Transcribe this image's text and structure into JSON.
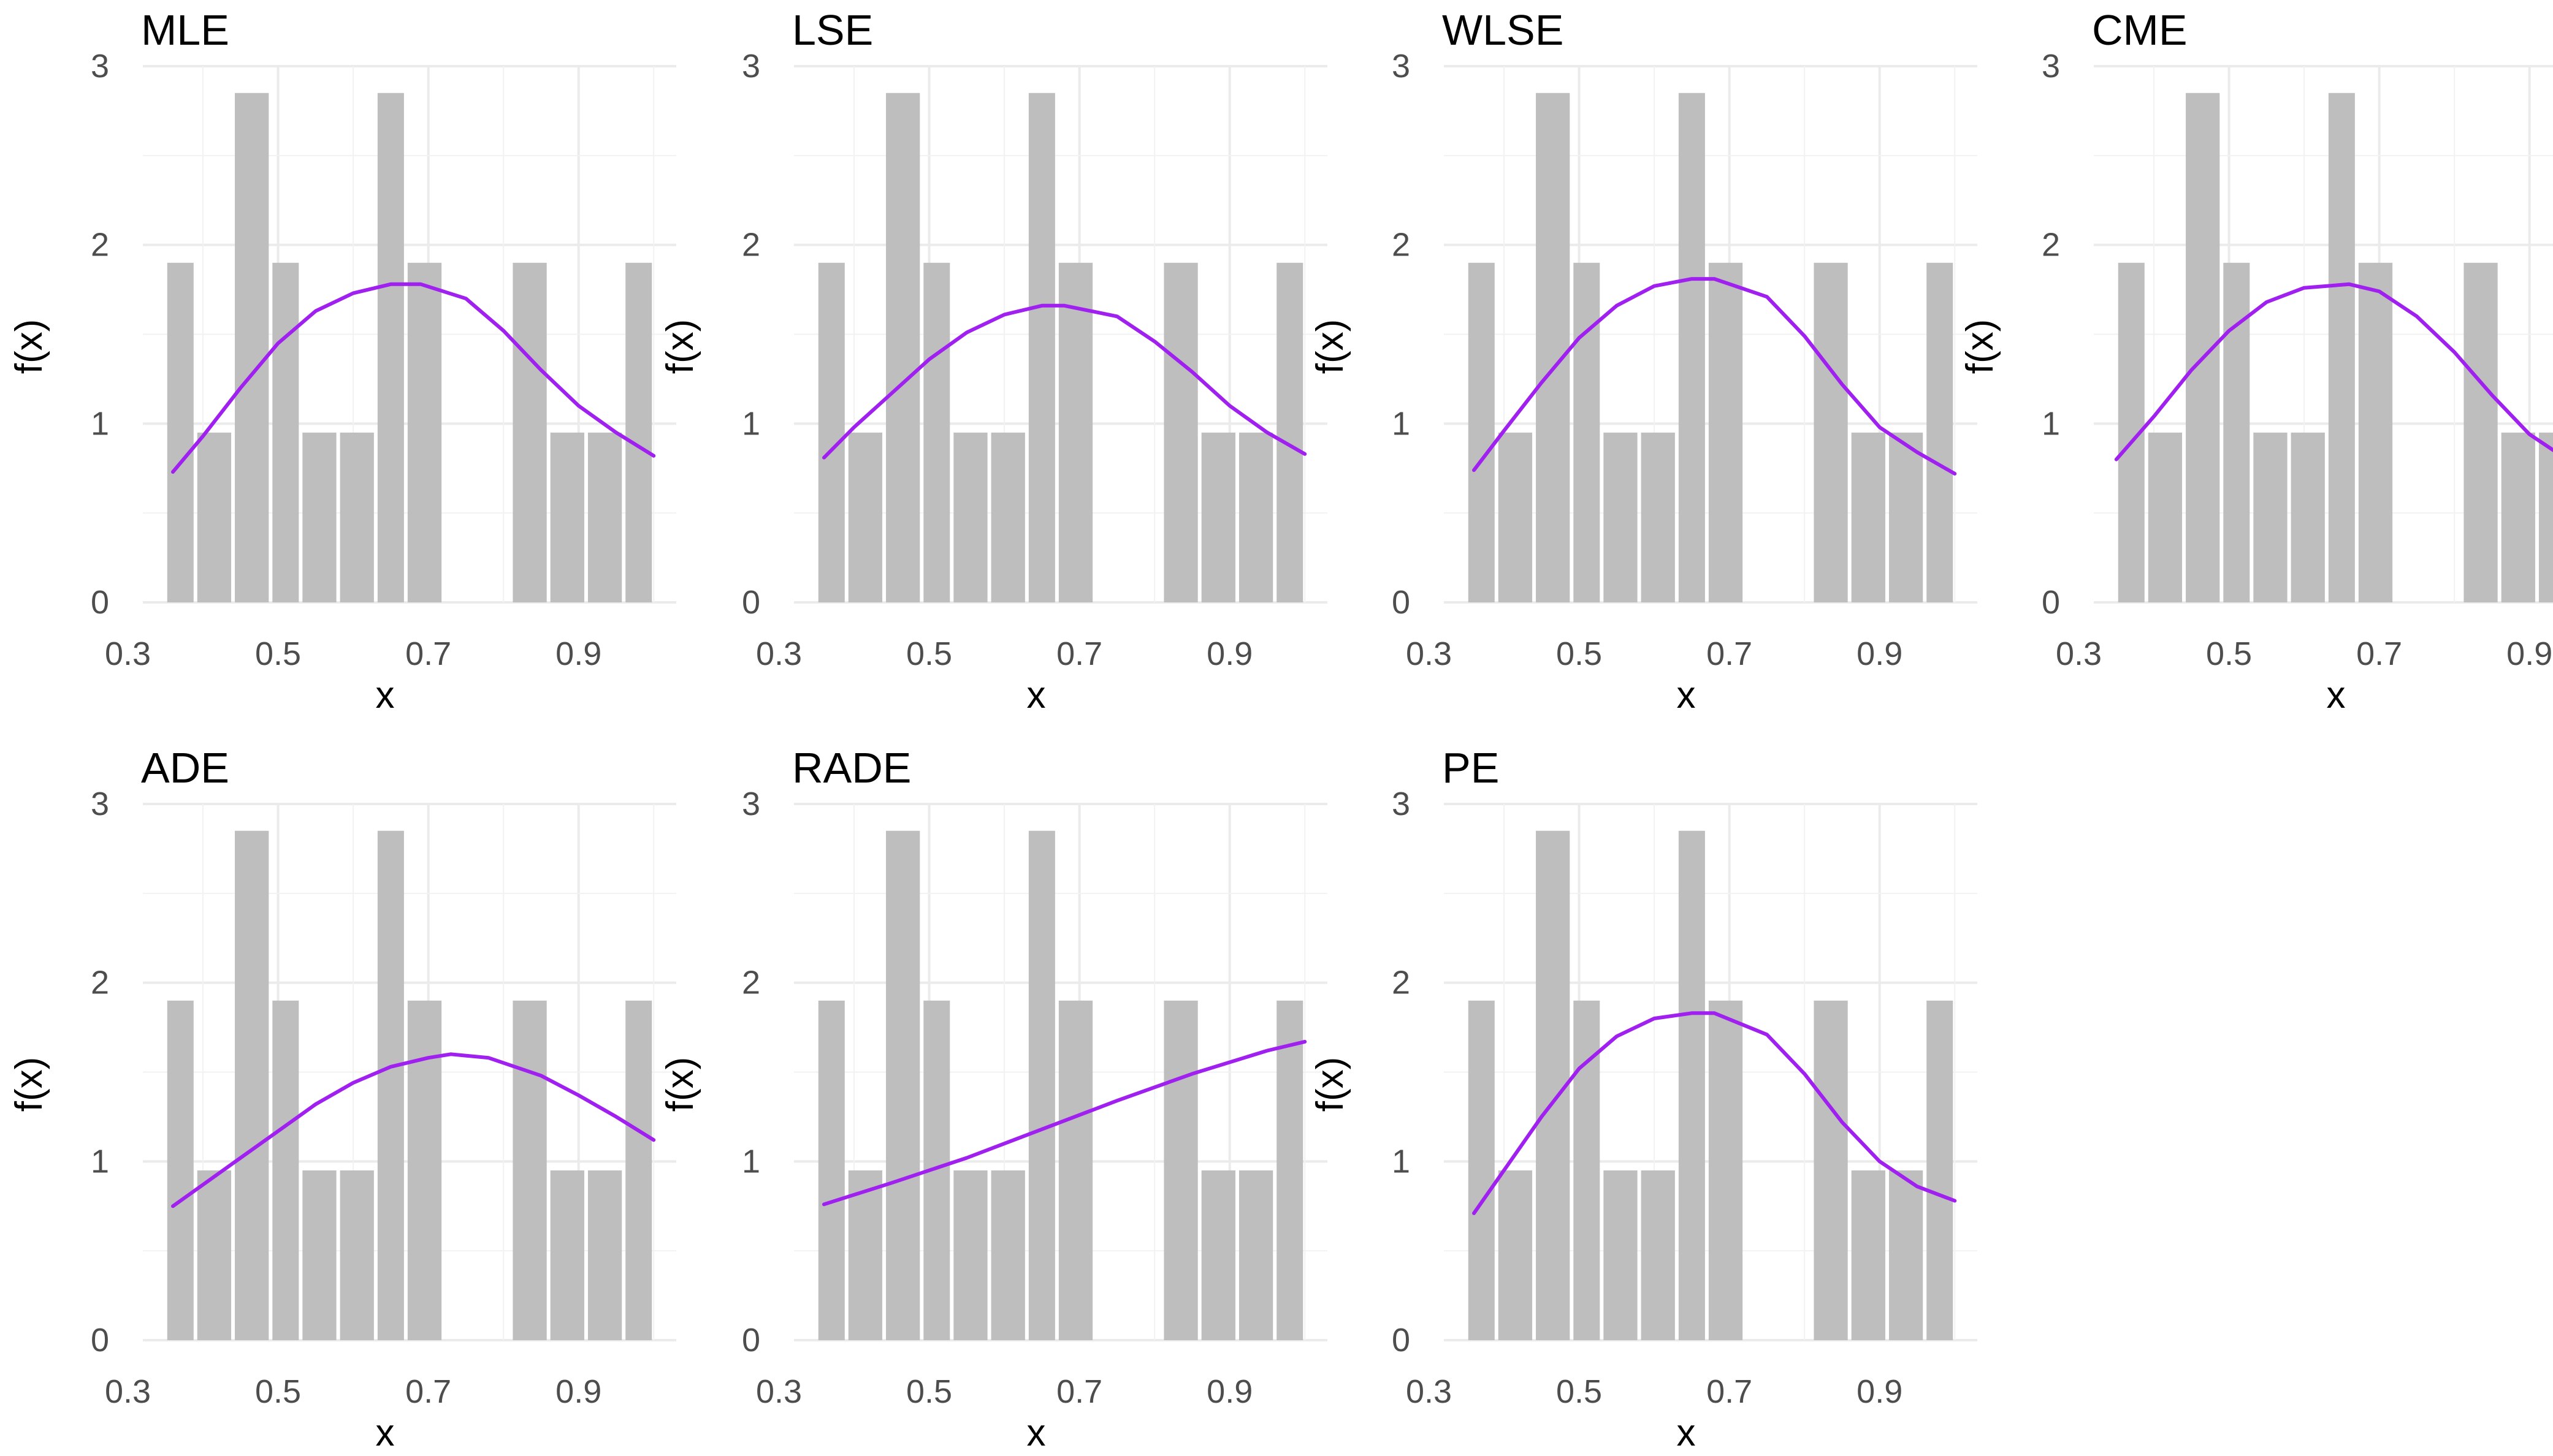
{
  "chart_data": [
    {
      "type": "bar",
      "title": "MLE",
      "xlabel": "x",
      "ylabel": "f(x)",
      "xlim": [
        0.32,
        1.03
      ],
      "ylim": [
        0,
        3
      ],
      "xticks": [
        0.3,
        0.5,
        0.7,
        0.9
      ],
      "xtick_labels": [
        "0.3",
        "0.5",
        "0.7",
        "0.9"
      ],
      "yticks": [
        0,
        1,
        2,
        3
      ],
      "ytick_labels": [
        "0",
        "1",
        "2",
        "3"
      ],
      "bins": [
        [
          0.35,
          0.39
        ],
        [
          0.39,
          0.44
        ],
        [
          0.44,
          0.49
        ],
        [
          0.49,
          0.53
        ],
        [
          0.53,
          0.58
        ],
        [
          0.58,
          0.63
        ],
        [
          0.63,
          0.67
        ],
        [
          0.67,
          0.72
        ],
        [
          0.72,
          0.77
        ],
        [
          0.77,
          0.81
        ],
        [
          0.81,
          0.86
        ],
        [
          0.86,
          0.91
        ],
        [
          0.91,
          0.96
        ],
        [
          0.96,
          1.0
        ]
      ],
      "density": [
        1.9,
        0.95,
        2.85,
        1.9,
        0.95,
        0.95,
        2.85,
        1.9,
        0,
        0,
        1.9,
        0.95,
        0.95,
        1.9
      ],
      "fit_curve": {
        "name": "fitted density",
        "color": "#a020f0",
        "x": [
          0.36,
          0.4,
          0.45,
          0.5,
          0.55,
          0.6,
          0.65,
          0.69,
          0.75,
          0.8,
          0.85,
          0.9,
          0.95,
          1.0
        ],
        "y": [
          0.73,
          0.93,
          1.2,
          1.45,
          1.63,
          1.73,
          1.78,
          1.78,
          1.7,
          1.52,
          1.3,
          1.1,
          0.95,
          0.82
        ]
      }
    },
    {
      "type": "bar",
      "title": "LSE",
      "xlabel": "x",
      "ylabel": "f(x)",
      "xlim": [
        0.32,
        1.03
      ],
      "ylim": [
        0,
        3
      ],
      "xticks": [
        0.3,
        0.5,
        0.7,
        0.9
      ],
      "xtick_labels": [
        "0.3",
        "0.5",
        "0.7",
        "0.9"
      ],
      "yticks": [
        0,
        1,
        2,
        3
      ],
      "ytick_labels": [
        "0",
        "1",
        "2",
        "3"
      ],
      "bins": [
        [
          0.35,
          0.39
        ],
        [
          0.39,
          0.44
        ],
        [
          0.44,
          0.49
        ],
        [
          0.49,
          0.53
        ],
        [
          0.53,
          0.58
        ],
        [
          0.58,
          0.63
        ],
        [
          0.63,
          0.67
        ],
        [
          0.67,
          0.72
        ],
        [
          0.72,
          0.77
        ],
        [
          0.77,
          0.81
        ],
        [
          0.81,
          0.86
        ],
        [
          0.86,
          0.91
        ],
        [
          0.91,
          0.96
        ],
        [
          0.96,
          1.0
        ]
      ],
      "density": [
        1.9,
        0.95,
        2.85,
        1.9,
        0.95,
        0.95,
        2.85,
        1.9,
        0,
        0,
        1.9,
        0.95,
        0.95,
        1.9
      ],
      "fit_curve": {
        "name": "fitted density",
        "color": "#a020f0",
        "x": [
          0.36,
          0.4,
          0.45,
          0.5,
          0.55,
          0.6,
          0.65,
          0.68,
          0.75,
          0.8,
          0.85,
          0.9,
          0.95,
          1.0
        ],
        "y": [
          0.81,
          0.98,
          1.17,
          1.36,
          1.51,
          1.61,
          1.66,
          1.66,
          1.6,
          1.46,
          1.29,
          1.1,
          0.95,
          0.83
        ]
      }
    },
    {
      "type": "bar",
      "title": "WLSE",
      "xlabel": "x",
      "ylabel": "f(x)",
      "xlim": [
        0.32,
        1.03
      ],
      "ylim": [
        0,
        3
      ],
      "xticks": [
        0.3,
        0.5,
        0.7,
        0.9
      ],
      "xtick_labels": [
        "0.3",
        "0.5",
        "0.7",
        "0.9"
      ],
      "yticks": [
        0,
        1,
        2,
        3
      ],
      "ytick_labels": [
        "0",
        "1",
        "2",
        "3"
      ],
      "bins": [
        [
          0.35,
          0.39
        ],
        [
          0.39,
          0.44
        ],
        [
          0.44,
          0.49
        ],
        [
          0.49,
          0.53
        ],
        [
          0.53,
          0.58
        ],
        [
          0.58,
          0.63
        ],
        [
          0.63,
          0.67
        ],
        [
          0.67,
          0.72
        ],
        [
          0.72,
          0.77
        ],
        [
          0.77,
          0.81
        ],
        [
          0.81,
          0.86
        ],
        [
          0.86,
          0.91
        ],
        [
          0.91,
          0.96
        ],
        [
          0.96,
          1.0
        ]
      ],
      "density": [
        1.9,
        0.95,
        2.85,
        1.9,
        0.95,
        0.95,
        2.85,
        1.9,
        0,
        0,
        1.9,
        0.95,
        0.95,
        1.9
      ],
      "fit_curve": {
        "name": "fitted density",
        "color": "#a020f0",
        "x": [
          0.36,
          0.4,
          0.45,
          0.5,
          0.55,
          0.6,
          0.65,
          0.68,
          0.75,
          0.8,
          0.85,
          0.9,
          0.95,
          1.0
        ],
        "y": [
          0.74,
          0.96,
          1.23,
          1.48,
          1.66,
          1.77,
          1.81,
          1.81,
          1.71,
          1.49,
          1.22,
          0.98,
          0.84,
          0.72
        ]
      }
    },
    {
      "type": "bar",
      "title": "CME",
      "xlabel": "x",
      "ylabel": "f(x)",
      "xlim": [
        0.32,
        1.03
      ],
      "ylim": [
        0,
        3
      ],
      "xticks": [
        0.3,
        0.5,
        0.7,
        0.9
      ],
      "xtick_labels": [
        "0.3",
        "0.5",
        "0.7",
        "0.9"
      ],
      "yticks": [
        0,
        1,
        2,
        3
      ],
      "ytick_labels": [
        "0",
        "1",
        "2",
        "3"
      ],
      "bins": [
        [
          0.35,
          0.39
        ],
        [
          0.39,
          0.44
        ],
        [
          0.44,
          0.49
        ],
        [
          0.49,
          0.53
        ],
        [
          0.53,
          0.58
        ],
        [
          0.58,
          0.63
        ],
        [
          0.63,
          0.67
        ],
        [
          0.67,
          0.72
        ],
        [
          0.72,
          0.77
        ],
        [
          0.77,
          0.81
        ],
        [
          0.81,
          0.86
        ],
        [
          0.86,
          0.91
        ],
        [
          0.91,
          0.96
        ],
        [
          0.96,
          1.0
        ]
      ],
      "density": [
        1.9,
        0.95,
        2.85,
        1.9,
        0.95,
        0.95,
        2.85,
        1.9,
        0,
        0,
        1.9,
        0.95,
        0.95,
        1.9
      ],
      "fit_curve": {
        "name": "fitted density",
        "color": "#a020f0",
        "x": [
          0.35,
          0.4,
          0.45,
          0.5,
          0.55,
          0.6,
          0.66,
          0.7,
          0.75,
          0.8,
          0.85,
          0.9,
          0.95,
          1.0
        ],
        "y": [
          0.8,
          1.04,
          1.3,
          1.52,
          1.68,
          1.76,
          1.78,
          1.74,
          1.6,
          1.4,
          1.16,
          0.94,
          0.8,
          0.69
        ]
      }
    },
    {
      "type": "bar",
      "title": "ADE",
      "xlabel": "x",
      "ylabel": "f(x)",
      "xlim": [
        0.32,
        1.03
      ],
      "ylim": [
        0,
        3
      ],
      "xticks": [
        0.3,
        0.5,
        0.7,
        0.9
      ],
      "xtick_labels": [
        "0.3",
        "0.5",
        "0.7",
        "0.9"
      ],
      "yticks": [
        0,
        1,
        2,
        3
      ],
      "ytick_labels": [
        "0",
        "1",
        "2",
        "3"
      ],
      "bins": [
        [
          0.35,
          0.39
        ],
        [
          0.39,
          0.44
        ],
        [
          0.44,
          0.49
        ],
        [
          0.49,
          0.53
        ],
        [
          0.53,
          0.58
        ],
        [
          0.58,
          0.63
        ],
        [
          0.63,
          0.67
        ],
        [
          0.67,
          0.72
        ],
        [
          0.72,
          0.77
        ],
        [
          0.77,
          0.81
        ],
        [
          0.81,
          0.86
        ],
        [
          0.86,
          0.91
        ],
        [
          0.91,
          0.96
        ],
        [
          0.96,
          1.0
        ]
      ],
      "density": [
        1.9,
        0.95,
        2.85,
        1.9,
        0.95,
        0.95,
        2.85,
        1.9,
        0,
        0,
        1.9,
        0.95,
        0.95,
        1.9
      ],
      "fit_curve": {
        "name": "fitted density",
        "color": "#a020f0",
        "x": [
          0.36,
          0.4,
          0.45,
          0.5,
          0.55,
          0.6,
          0.65,
          0.7,
          0.73,
          0.78,
          0.85,
          0.9,
          0.95,
          1.0
        ],
        "y": [
          0.75,
          0.87,
          1.02,
          1.17,
          1.32,
          1.44,
          1.53,
          1.58,
          1.6,
          1.58,
          1.48,
          1.37,
          1.25,
          1.12
        ]
      }
    },
    {
      "type": "bar",
      "title": "RADE",
      "xlabel": "x",
      "ylabel": "f(x)",
      "xlim": [
        0.32,
        1.03
      ],
      "ylim": [
        0,
        3
      ],
      "xticks": [
        0.3,
        0.5,
        0.7,
        0.9
      ],
      "xtick_labels": [
        "0.3",
        "0.5",
        "0.7",
        "0.9"
      ],
      "yticks": [
        0,
        1,
        2,
        3
      ],
      "ytick_labels": [
        "0",
        "1",
        "2",
        "3"
      ],
      "bins": [
        [
          0.35,
          0.39
        ],
        [
          0.39,
          0.44
        ],
        [
          0.44,
          0.49
        ],
        [
          0.49,
          0.53
        ],
        [
          0.53,
          0.58
        ],
        [
          0.58,
          0.63
        ],
        [
          0.63,
          0.67
        ],
        [
          0.67,
          0.72
        ],
        [
          0.72,
          0.77
        ],
        [
          0.77,
          0.81
        ],
        [
          0.81,
          0.86
        ],
        [
          0.86,
          0.91
        ],
        [
          0.91,
          0.96
        ],
        [
          0.96,
          1.0
        ]
      ],
      "density": [
        1.9,
        0.95,
        2.85,
        1.9,
        0.95,
        0.95,
        2.85,
        1.9,
        0,
        0,
        1.9,
        0.95,
        0.95,
        1.9
      ],
      "fit_curve": {
        "name": "fitted density",
        "color": "#a020f0",
        "x": [
          0.36,
          0.45,
          0.55,
          0.65,
          0.75,
          0.85,
          0.95,
          1.0
        ],
        "y": [
          0.76,
          0.88,
          1.02,
          1.18,
          1.34,
          1.49,
          1.62,
          1.67
        ]
      }
    },
    {
      "type": "bar",
      "title": "PE",
      "xlabel": "x",
      "ylabel": "f(x)",
      "xlim": [
        0.32,
        1.03
      ],
      "ylim": [
        0,
        3
      ],
      "xticks": [
        0.3,
        0.5,
        0.7,
        0.9
      ],
      "xtick_labels": [
        "0.3",
        "0.5",
        "0.7",
        "0.9"
      ],
      "yticks": [
        0,
        1,
        2,
        3
      ],
      "ytick_labels": [
        "0",
        "1",
        "2",
        "3"
      ],
      "bins": [
        [
          0.35,
          0.39
        ],
        [
          0.39,
          0.44
        ],
        [
          0.44,
          0.49
        ],
        [
          0.49,
          0.53
        ],
        [
          0.53,
          0.58
        ],
        [
          0.58,
          0.63
        ],
        [
          0.63,
          0.67
        ],
        [
          0.67,
          0.72
        ],
        [
          0.72,
          0.77
        ],
        [
          0.77,
          0.81
        ],
        [
          0.81,
          0.86
        ],
        [
          0.86,
          0.91
        ],
        [
          0.91,
          0.96
        ],
        [
          0.96,
          1.0
        ]
      ],
      "density": [
        1.9,
        0.95,
        2.85,
        1.9,
        0.95,
        0.95,
        2.85,
        1.9,
        0,
        0,
        1.9,
        0.95,
        0.95,
        1.9
      ],
      "fit_curve": {
        "name": "fitted density",
        "color": "#a020f0",
        "x": [
          0.36,
          0.4,
          0.45,
          0.5,
          0.55,
          0.6,
          0.65,
          0.68,
          0.75,
          0.8,
          0.85,
          0.9,
          0.95,
          1.0
        ],
        "y": [
          0.71,
          0.95,
          1.25,
          1.52,
          1.7,
          1.8,
          1.83,
          1.83,
          1.71,
          1.49,
          1.22,
          1.0,
          0.86,
          0.78
        ]
      }
    }
  ],
  "style": {
    "bar_color": "#bebebe",
    "curve_color": "#a020f0",
    "grid_color": "#ebebeb",
    "text_color": "#000000",
    "tick_color": "#4d4d4d"
  }
}
